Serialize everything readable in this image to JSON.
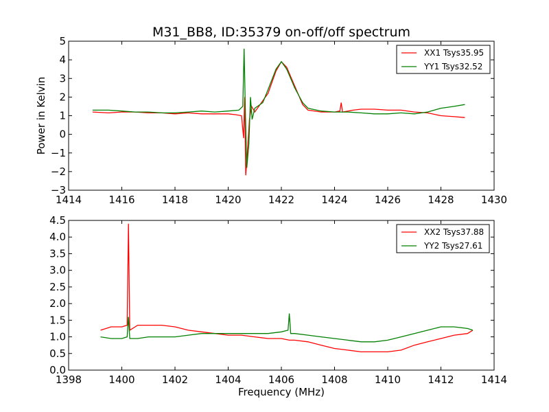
{
  "chart_data": [
    {
      "type": "line",
      "title": "M31_BB8, ID:35379 on-off/off spectrum",
      "xlabel": "",
      "ylabel": "Power in Kelvin",
      "xlim": [
        1414,
        1430
      ],
      "ylim": [
        -3,
        5
      ],
      "xticks": [
        "1414",
        "1416",
        "1418",
        "1420",
        "1422",
        "1424",
        "1426",
        "1428",
        "1430"
      ],
      "yticks": [
        "−3",
        "−2",
        "−1",
        "0",
        "1",
        "2",
        "3",
        "4",
        "5"
      ],
      "legend_position": "top-right",
      "series": [
        {
          "name": "XX1 Tsys35.95",
          "color": "#ff0000",
          "points": [
            [
              1414.9,
              1.2
            ],
            [
              1415.5,
              1.15
            ],
            [
              1416.0,
              1.2
            ],
            [
              1416.5,
              1.2
            ],
            [
              1417.0,
              1.15
            ],
            [
              1417.5,
              1.15
            ],
            [
              1418.0,
              1.1
            ],
            [
              1418.5,
              1.15
            ],
            [
              1419.0,
              1.1
            ],
            [
              1419.5,
              1.1
            ],
            [
              1420.0,
              1.1
            ],
            [
              1420.3,
              1.05
            ],
            [
              1420.5,
              1.0
            ],
            [
              1420.58,
              -0.2
            ],
            [
              1420.62,
              2.0
            ],
            [
              1420.66,
              -2.2
            ],
            [
              1420.72,
              -1.0
            ],
            [
              1420.8,
              0.8
            ],
            [
              1420.88,
              1.5
            ],
            [
              1421.0,
              1.2
            ],
            [
              1421.2,
              1.6
            ],
            [
              1421.5,
              2.2
            ],
            [
              1421.8,
              3.4
            ],
            [
              1422.0,
              3.9
            ],
            [
              1422.2,
              3.6
            ],
            [
              1422.5,
              2.6
            ],
            [
              1422.8,
              1.6
            ],
            [
              1423.0,
              1.3
            ],
            [
              1423.5,
              1.2
            ],
            [
              1424.0,
              1.2
            ],
            [
              1424.2,
              1.25
            ],
            [
              1424.25,
              1.7
            ],
            [
              1424.3,
              1.2
            ],
            [
              1424.7,
              1.3
            ],
            [
              1425.0,
              1.35
            ],
            [
              1425.5,
              1.35
            ],
            [
              1426.0,
              1.3
            ],
            [
              1426.5,
              1.3
            ],
            [
              1427.0,
              1.2
            ],
            [
              1427.5,
              1.15
            ],
            [
              1428.0,
              1.0
            ],
            [
              1428.5,
              0.95
            ],
            [
              1428.9,
              0.9
            ]
          ]
        },
        {
          "name": "YY1 Tsys32.52",
          "color": "#008000",
          "points": [
            [
              1414.9,
              1.3
            ],
            [
              1415.5,
              1.3
            ],
            [
              1416.0,
              1.25
            ],
            [
              1416.5,
              1.2
            ],
            [
              1417.0,
              1.2
            ],
            [
              1417.5,
              1.15
            ],
            [
              1418.0,
              1.15
            ],
            [
              1418.5,
              1.2
            ],
            [
              1419.0,
              1.25
            ],
            [
              1419.5,
              1.2
            ],
            [
              1420.0,
              1.25
            ],
            [
              1420.4,
              1.3
            ],
            [
              1420.55,
              1.5
            ],
            [
              1420.6,
              4.6
            ],
            [
              1420.65,
              1.0
            ],
            [
              1420.7,
              -1.8
            ],
            [
              1420.78,
              -0.5
            ],
            [
              1420.84,
              2.0
            ],
            [
              1420.9,
              0.8
            ],
            [
              1421.0,
              1.4
            ],
            [
              1421.3,
              1.7
            ],
            [
              1421.5,
              2.4
            ],
            [
              1421.8,
              3.5
            ],
            [
              1422.0,
              3.9
            ],
            [
              1422.2,
              3.5
            ],
            [
              1422.5,
              2.5
            ],
            [
              1422.8,
              1.7
            ],
            [
              1423.0,
              1.4
            ],
            [
              1423.5,
              1.25
            ],
            [
              1424.0,
              1.2
            ],
            [
              1424.5,
              1.2
            ],
            [
              1425.0,
              1.15
            ],
            [
              1425.5,
              1.1
            ],
            [
              1426.0,
              1.1
            ],
            [
              1426.5,
              1.15
            ],
            [
              1427.0,
              1.1
            ],
            [
              1427.5,
              1.2
            ],
            [
              1428.0,
              1.4
            ],
            [
              1428.5,
              1.5
            ],
            [
              1428.9,
              1.6
            ]
          ]
        }
      ]
    },
    {
      "type": "line",
      "title": "",
      "xlabel": "Frequency (MHz)",
      "ylabel": "",
      "xlim": [
        1398,
        1414
      ],
      "ylim": [
        0.0,
        4.5
      ],
      "xticks": [
        "1398",
        "1400",
        "1402",
        "1404",
        "1406",
        "1408",
        "1410",
        "1412",
        "1414"
      ],
      "yticks": [
        "0.0",
        "0.5",
        "1.0",
        "1.5",
        "2.0",
        "2.5",
        "3.0",
        "3.5",
        "4.0",
        "4.5"
      ],
      "legend_position": "top-right",
      "series": [
        {
          "name": "XX2 Tsys37.88",
          "color": "#ff0000",
          "points": [
            [
              1399.2,
              1.2
            ],
            [
              1399.6,
              1.3
            ],
            [
              1400.0,
              1.3
            ],
            [
              1400.2,
              1.35
            ],
            [
              1400.25,
              4.4
            ],
            [
              1400.3,
              1.2
            ],
            [
              1400.6,
              1.35
            ],
            [
              1401.0,
              1.35
            ],
            [
              1401.5,
              1.35
            ],
            [
              1402.0,
              1.3
            ],
            [
              1402.5,
              1.2
            ],
            [
              1403.0,
              1.15
            ],
            [
              1403.5,
              1.1
            ],
            [
              1404.0,
              1.05
            ],
            [
              1404.5,
              1.05
            ],
            [
              1405.0,
              1.0
            ],
            [
              1405.5,
              0.95
            ],
            [
              1406.0,
              0.95
            ],
            [
              1406.3,
              0.9
            ],
            [
              1406.5,
              0.9
            ],
            [
              1407.0,
              0.85
            ],
            [
              1407.5,
              0.75
            ],
            [
              1408.0,
              0.65
            ],
            [
              1408.5,
              0.6
            ],
            [
              1409.0,
              0.55
            ],
            [
              1409.5,
              0.55
            ],
            [
              1410.0,
              0.55
            ],
            [
              1410.5,
              0.6
            ],
            [
              1411.0,
              0.75
            ],
            [
              1411.5,
              0.85
            ],
            [
              1412.0,
              0.95
            ],
            [
              1412.5,
              1.05
            ],
            [
              1413.0,
              1.1
            ],
            [
              1413.2,
              1.2
            ]
          ]
        },
        {
          "name": "YY2 Tsys27.61",
          "color": "#008000",
          "points": [
            [
              1399.2,
              1.0
            ],
            [
              1399.6,
              0.95
            ],
            [
              1400.0,
              0.95
            ],
            [
              1400.2,
              1.0
            ],
            [
              1400.25,
              1.6
            ],
            [
              1400.3,
              0.95
            ],
            [
              1400.6,
              0.95
            ],
            [
              1401.0,
              1.0
            ],
            [
              1401.5,
              1.0
            ],
            [
              1402.0,
              1.0
            ],
            [
              1402.5,
              1.05
            ],
            [
              1403.0,
              1.1
            ],
            [
              1403.5,
              1.1
            ],
            [
              1404.0,
              1.1
            ],
            [
              1404.5,
              1.1
            ],
            [
              1405.0,
              1.1
            ],
            [
              1405.5,
              1.1
            ],
            [
              1406.0,
              1.15
            ],
            [
              1406.25,
              1.2
            ],
            [
              1406.3,
              1.7
            ],
            [
              1406.35,
              1.1
            ],
            [
              1406.5,
              1.1
            ],
            [
              1407.0,
              1.05
            ],
            [
              1407.5,
              1.0
            ],
            [
              1408.0,
              0.95
            ],
            [
              1408.5,
              0.9
            ],
            [
              1409.0,
              0.85
            ],
            [
              1409.5,
              0.85
            ],
            [
              1410.0,
              0.9
            ],
            [
              1410.5,
              1.0
            ],
            [
              1411.0,
              1.1
            ],
            [
              1411.5,
              1.2
            ],
            [
              1412.0,
              1.3
            ],
            [
              1412.5,
              1.3
            ],
            [
              1413.0,
              1.25
            ],
            [
              1413.2,
              1.2
            ]
          ]
        }
      ]
    }
  ]
}
